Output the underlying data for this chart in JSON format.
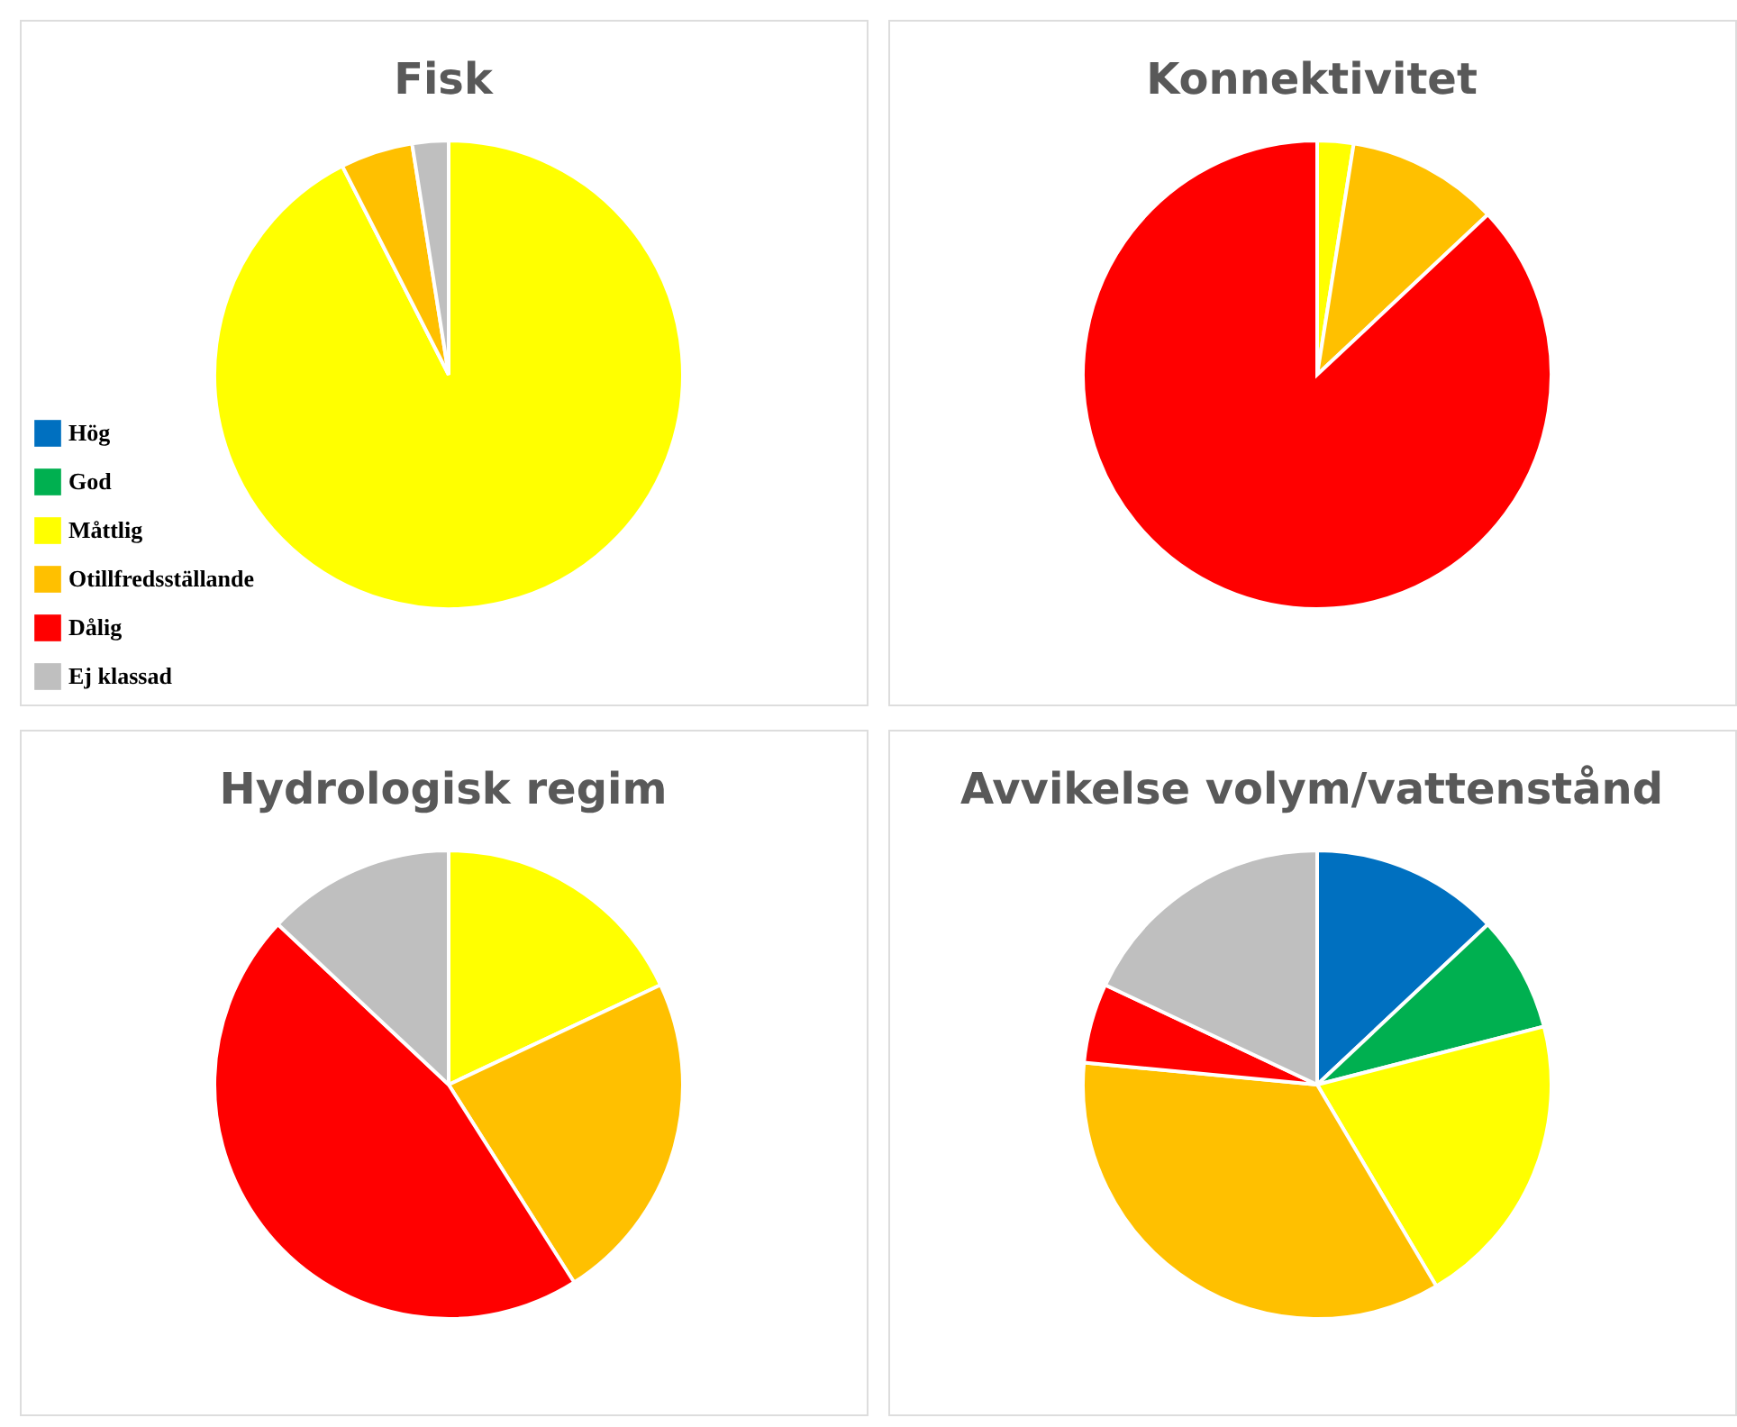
{
  "chart_data": [
    {
      "type": "pie",
      "title": "Fisk",
      "categories": [
        "Hög",
        "God",
        "Måttlig",
        "Otillfredsställande",
        "Dålig",
        "Ej klassad"
      ],
      "values": [
        0,
        0,
        92.5,
        5,
        0,
        2.5
      ],
      "colors": [
        "#0070c0",
        "#00b050",
        "#ffff00",
        "#ffc000",
        "#ff0000",
        "#bfbfbf"
      ],
      "legend": "bottom left"
    },
    {
      "type": "pie",
      "title": "Konnektivitet",
      "categories": [
        null,
        null,
        null,
        null,
        null,
        null
      ],
      "values": [
        0,
        0,
        2.5,
        10.5,
        87,
        0
      ],
      "colors": [
        "#0070c0",
        "#00b050",
        "#ffff00",
        "#ffc000",
        "#ff0000",
        "#bfbfbf"
      ]
    },
    {
      "type": "pie",
      "title": "Hydrologisk regim",
      "categories": [
        null,
        null,
        null,
        null,
        null,
        null
      ],
      "values": [
        0,
        0,
        18,
        23,
        46,
        13
      ],
      "colors": [
        "#0070c0",
        "#00b050",
        "#ffff00",
        "#ffc000",
        "#ff0000",
        "#bfbfbf"
      ]
    },
    {
      "type": "pie",
      "title": "Avvikelse volym/vattenstånd",
      "categories": [
        null,
        null,
        null,
        null,
        null,
        null
      ],
      "values": [
        13,
        8,
        20.5,
        35,
        5.5,
        18
      ],
      "colors": [
        "#0070c0",
        "#00b050",
        "#ffff00",
        "#ffc000",
        "#ff0000",
        "#bfbfbf"
      ]
    }
  ]
}
